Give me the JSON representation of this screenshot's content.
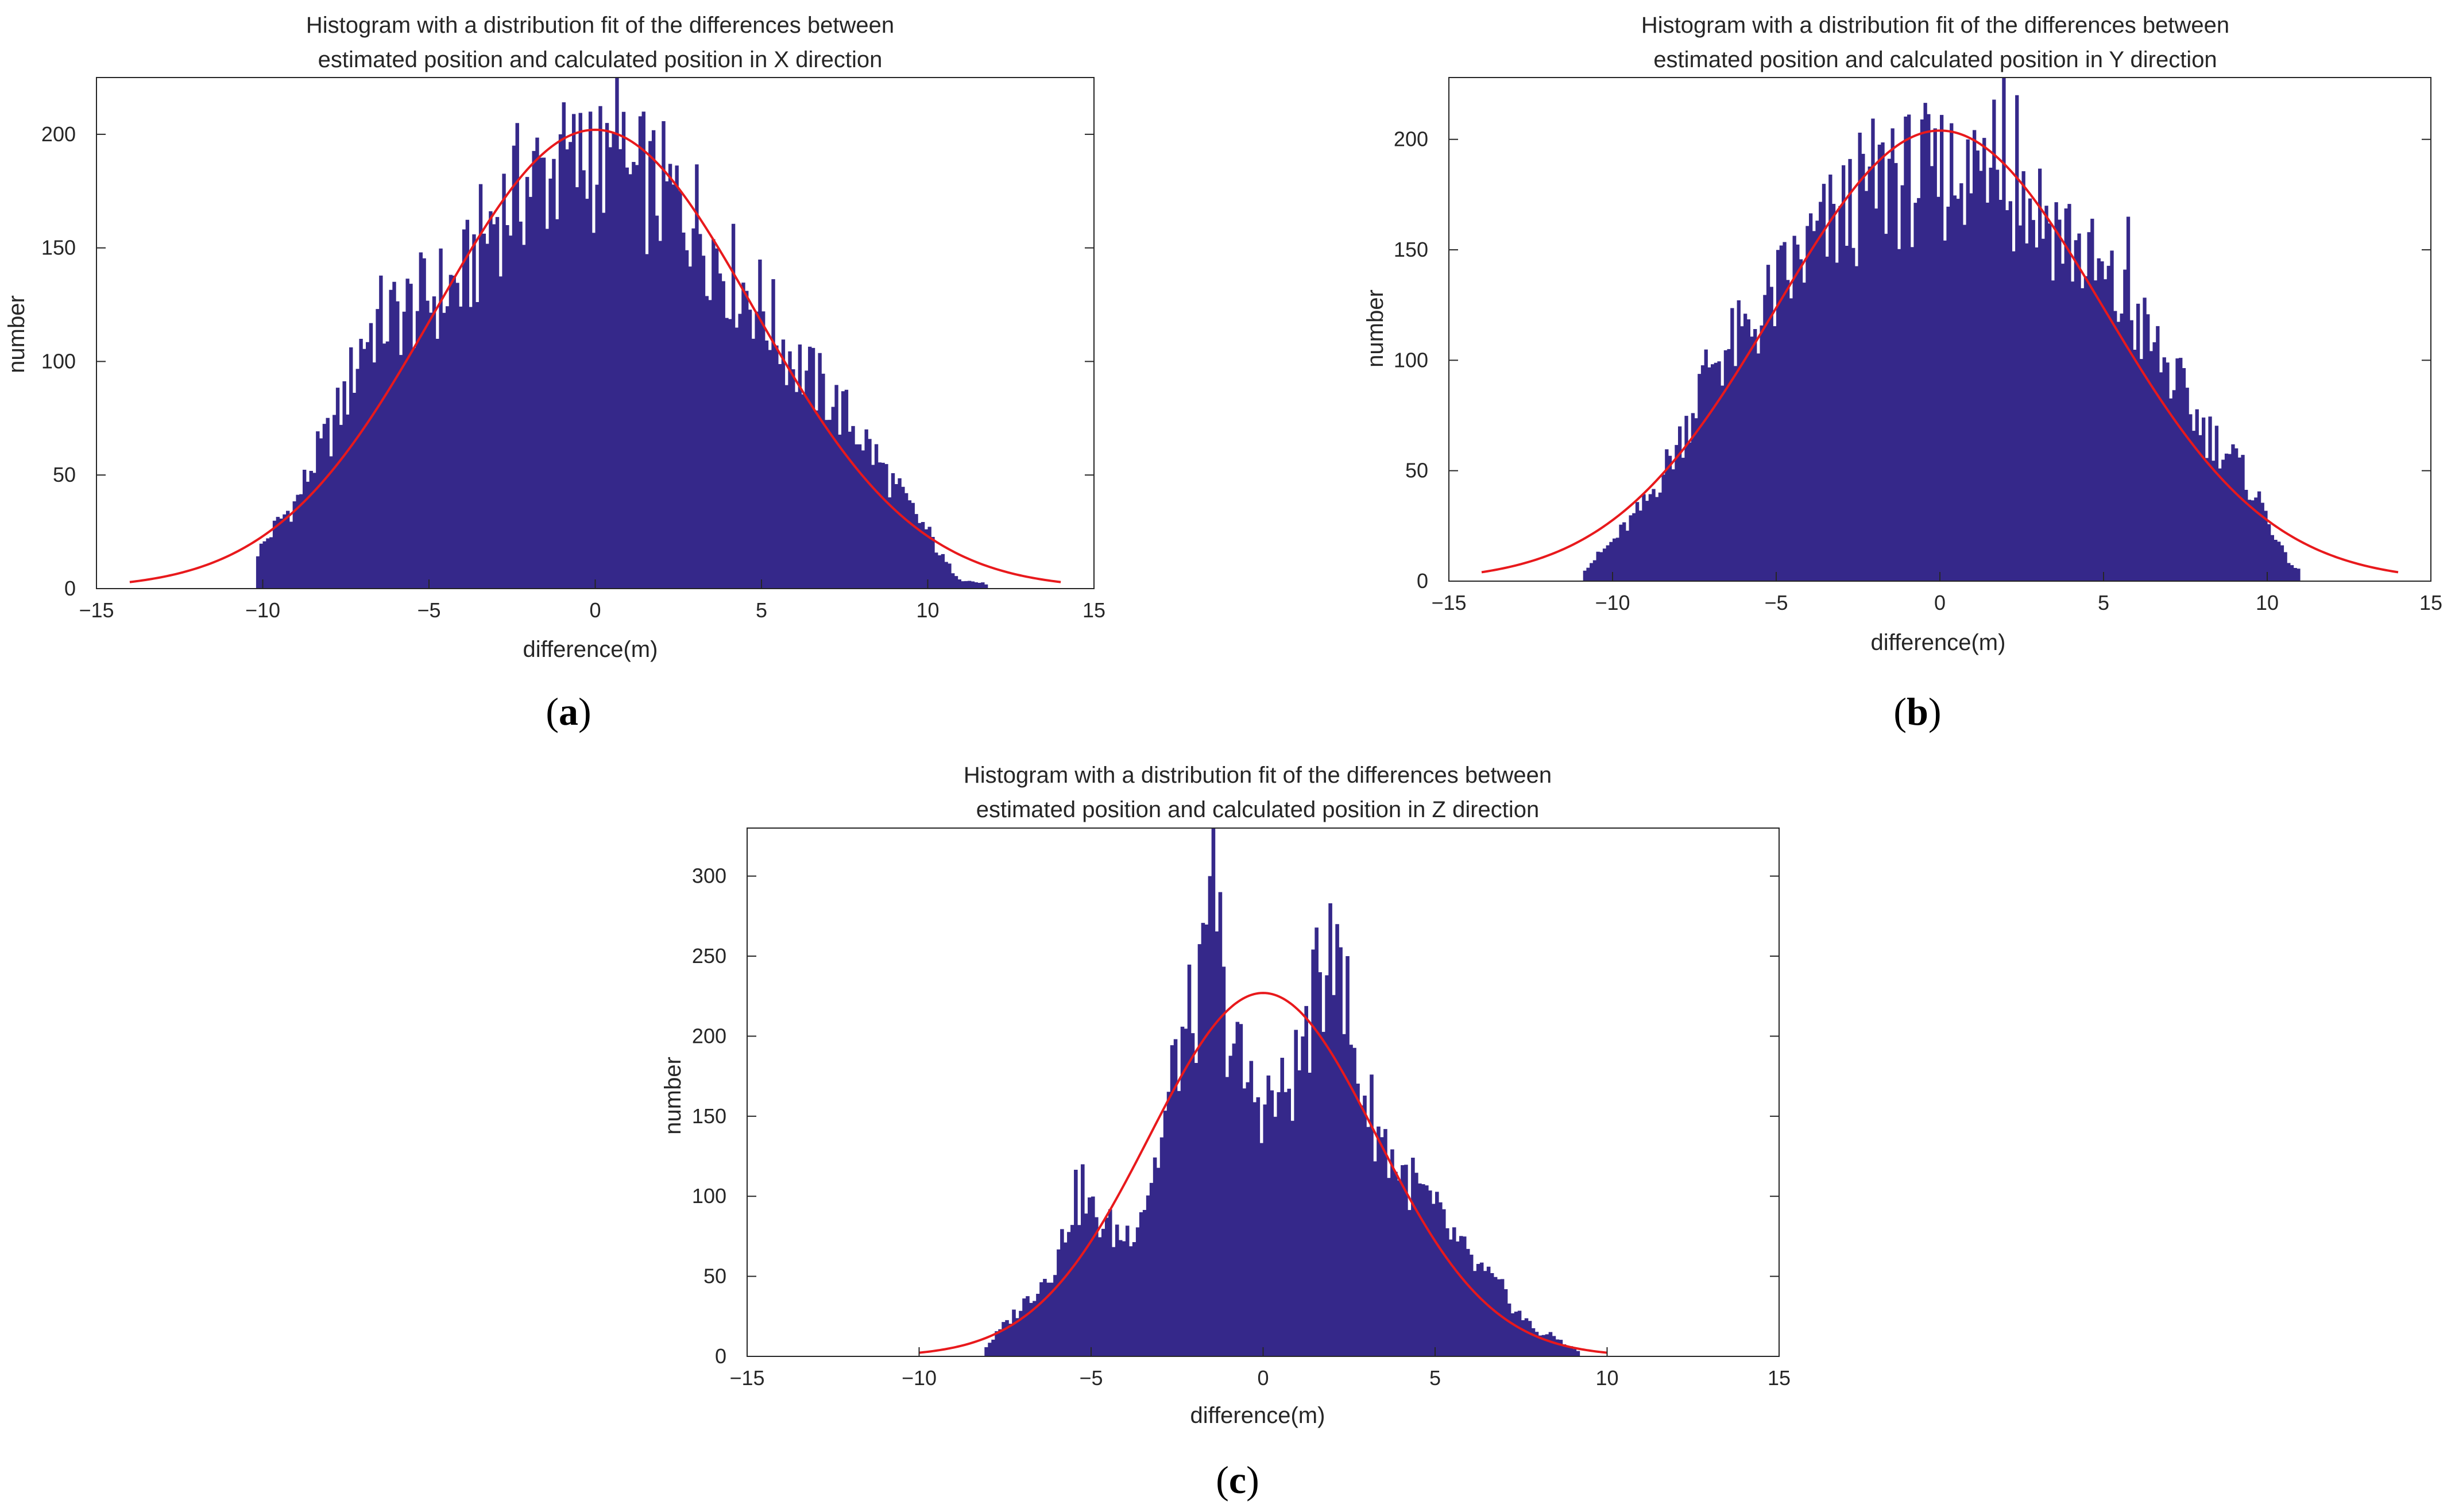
{
  "colors": {
    "bar": "#35288a",
    "fit": "#e8191c",
    "axis": "#262626"
  },
  "chart_data": [
    {
      "type": "bar",
      "panel": "a",
      "panel_label": "a",
      "title_line1": "Histogram with a distribution fit of the differences between",
      "title_line2": "estimated position and calculated position in X direction",
      "xlabel": "difference(m)",
      "ylabel": "number",
      "xlim": [
        -15,
        15
      ],
      "ylim": [
        0,
        225
      ],
      "xticks": [
        -15,
        -10,
        -5,
        0,
        5,
        10,
        15
      ],
      "xtick_labels": [
        "−15",
        "−10",
        "−5",
        "0",
        "5",
        "10",
        "15"
      ],
      "yticks": [
        0,
        50,
        100,
        150,
        200
      ],
      "ytick_labels": [
        "0",
        "50",
        "100",
        "150",
        "200"
      ],
      "data_range": [
        -10.2,
        11.8
      ],
      "bin_width": 0.1,
      "fit": {
        "distribution": "normal",
        "mean": 0.0,
        "sigma": 4.8,
        "peak": 202,
        "x_range": [
          -14,
          14
        ]
      },
      "profile": [
        [
          -10.2,
          15
        ],
        [
          -9.5,
          30
        ],
        [
          -9.0,
          38
        ],
        [
          -8.5,
          55
        ],
        [
          -8.0,
          68
        ],
        [
          -7.5,
          85
        ],
        [
          -7.0,
          110
        ],
        [
          -6.5,
          118
        ],
        [
          -6.0,
          120
        ],
        [
          -5.0,
          128
        ],
        [
          -4.0,
          135
        ],
        [
          -3.0,
          165
        ],
        [
          -2.0,
          180
        ],
        [
          -1.0,
          185
        ],
        [
          0.0,
          188
        ],
        [
          1.0,
          180
        ],
        [
          2.0,
          175
        ],
        [
          3.0,
          165
        ],
        [
          4.0,
          140
        ],
        [
          5.0,
          125
        ],
        [
          6.0,
          100
        ],
        [
          7.0,
          85
        ],
        [
          8.0,
          68
        ],
        [
          9.0,
          45
        ],
        [
          10.0,
          25
        ],
        [
          10.5,
          12
        ],
        [
          11.0,
          4
        ],
        [
          11.8,
          2
        ]
      ],
      "spikes": [
        [
          0.6,
          228
        ],
        [
          -1.1,
          200
        ],
        [
          -0.2,
          210
        ],
        [
          1.4,
          210
        ],
        [
          0.3,
          205
        ],
        [
          -2.5,
          195
        ]
      ]
    },
    {
      "type": "bar",
      "panel": "b",
      "panel_label": "b",
      "title_line1": "Histogram with a distribution fit of the differences between",
      "title_line2": "estimated position and calculated position in Y direction",
      "xlabel": "difference(m)",
      "ylabel": "number",
      "xlim": [
        -15,
        15
      ],
      "ylim": [
        0,
        228
      ],
      "xticks": [
        -15,
        -10,
        -5,
        0,
        5,
        10,
        15
      ],
      "xtick_labels": [
        "−15",
        "−10",
        "−5",
        "0",
        "5",
        "10",
        "15"
      ],
      "yticks": [
        0,
        50,
        100,
        150,
        200
      ],
      "ytick_labels": [
        "0",
        "50",
        "100",
        "150",
        "200"
      ],
      "data_range": [
        -10.9,
        11.0
      ],
      "bin_width": 0.1,
      "fit": {
        "distribution": "normal",
        "mean": 0.0,
        "sigma": 5.0,
        "peak": 204,
        "x_range": [
          -14,
          14
        ]
      },
      "profile": [
        [
          -10.9,
          5
        ],
        [
          -10.0,
          18
        ],
        [
          -9.0,
          35
        ],
        [
          -8.0,
          62
        ],
        [
          -7.0,
          100
        ],
        [
          -6.0,
          110
        ],
        [
          -5.0,
          130
        ],
        [
          -4.0,
          150
        ],
        [
          -3.0,
          165
        ],
        [
          -2.0,
          180
        ],
        [
          -1.0,
          182
        ],
        [
          0.0,
          185
        ],
        [
          1.0,
          185
        ],
        [
          2.0,
          180
        ],
        [
          3.0,
          170
        ],
        [
          4.0,
          155
        ],
        [
          5.0,
          135
        ],
        [
          6.0,
          118
        ],
        [
          7.0,
          95
        ],
        [
          8.0,
          70
        ],
        [
          9.0,
          55
        ],
        [
          10.0,
          30
        ],
        [
          10.5,
          12
        ],
        [
          11.0,
          4
        ]
      ],
      "spikes": [
        [
          1.9,
          230
        ],
        [
          1.6,
          218
        ],
        [
          -1.5,
          205
        ],
        [
          2.3,
          220
        ],
        [
          0.8,
          200
        ],
        [
          -0.2,
          205
        ],
        [
          5.7,
          165
        ]
      ]
    },
    {
      "type": "bar",
      "panel": "c",
      "panel_label": "c",
      "title_line1": "Histogram with a distribution fit of the differences between",
      "title_line2": "estimated position and calculated position in Z direction",
      "xlabel": "difference(m)",
      "ylabel": "number",
      "xlim": [
        -15,
        15
      ],
      "ylim": [
        0,
        330
      ],
      "xticks": [
        -15,
        -10,
        -5,
        0,
        5,
        10,
        15
      ],
      "xtick_labels": [
        "−15",
        "−10",
        "−5",
        "0",
        "5",
        "10",
        "15"
      ],
      "yticks": [
        0,
        50,
        100,
        150,
        200,
        250,
        300
      ],
      "ytick_labels": [
        "0",
        "50",
        "100",
        "150",
        "200",
        "250",
        "300"
      ],
      "data_range": [
        -8.1,
        9.2
      ],
      "bin_width": 0.1,
      "fit": {
        "distribution": "normal",
        "mean": 0.0,
        "sigma": 3.3,
        "peak": 227,
        "x_range": [
          -10,
          10
        ]
      },
      "profile": [
        [
          -8.1,
          5
        ],
        [
          -7.5,
          20
        ],
        [
          -7.0,
          32
        ],
        [
          -6.5,
          45
        ],
        [
          -6.0,
          60
        ],
        [
          -5.5,
          100
        ],
        [
          -5.0,
          90
        ],
        [
          -4.5,
          80
        ],
        [
          -4.0,
          75
        ],
        [
          -3.5,
          95
        ],
        [
          -3.0,
          130
        ],
        [
          -2.5,
          190
        ],
        [
          -2.0,
          215
        ],
        [
          -1.5,
          250
        ],
        [
          -1.0,
          205
        ],
        [
          -0.5,
          170
        ],
        [
          0.0,
          160
        ],
        [
          0.5,
          160
        ],
        [
          1.0,
          180
        ],
        [
          1.5,
          225
        ],
        [
          2.0,
          245
        ],
        [
          2.5,
          200
        ],
        [
          3.0,
          160
        ],
        [
          3.5,
          135
        ],
        [
          4.0,
          115
        ],
        [
          4.5,
          105
        ],
        [
          5.0,
          90
        ],
        [
          5.5,
          75
        ],
        [
          6.0,
          60
        ],
        [
          6.5,
          50
        ],
        [
          7.0,
          40
        ],
        [
          7.5,
          25
        ],
        [
          8.0,
          15
        ],
        [
          8.5,
          12
        ],
        [
          9.0,
          5
        ],
        [
          9.2,
          3
        ]
      ],
      "spikes": [
        [
          -1.5,
          335
        ],
        [
          -1.6,
          300
        ],
        [
          -1.3,
          290
        ],
        [
          1.9,
          283
        ],
        [
          2.1,
          270
        ],
        [
          -5.3,
          120
        ],
        [
          2.4,
          250
        ]
      ]
    }
  ]
}
